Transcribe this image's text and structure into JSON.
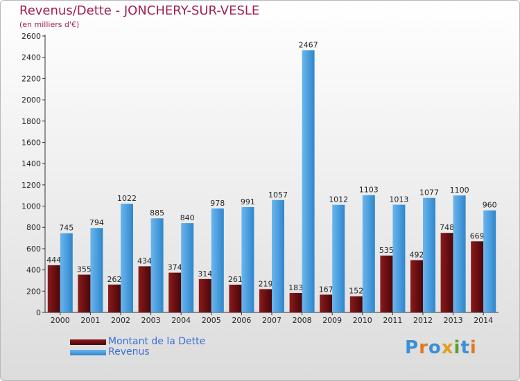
{
  "title": "Revenus/Dette - JONCHERY-SUR-VESLE",
  "subtitle": "(en milliers d'€)",
  "logo": {
    "text": "Proxiti"
  },
  "colors": {
    "dette": "#6b0e10",
    "revenus": "#3d9ae0",
    "title": "#a01e50",
    "legend_text": "#3b6fd6"
  },
  "chart_data": {
    "type": "bar",
    "title": "Revenus/Dette - JONCHERY-SUR-VESLE",
    "subtitle": "(en milliers d'€)",
    "categories": [
      "2000",
      "2001",
      "2002",
      "2003",
      "2004",
      "2005",
      "2006",
      "2007",
      "2008",
      "2009",
      "2010",
      "2011",
      "2012",
      "2013",
      "2014"
    ],
    "series": [
      {
        "name": "Montant de la Dette",
        "values": [
          444,
          355,
          262,
          434,
          374,
          314,
          261,
          219,
          183,
          167,
          152,
          535,
          492,
          748,
          669
        ]
      },
      {
        "name": "Revenus",
        "values": [
          745,
          794,
          1022,
          885,
          840,
          978,
          991,
          1057,
          2467,
          1012,
          1103,
          1013,
          1077,
          1100,
          960
        ]
      }
    ],
    "y_ticks": [
      "0",
      "200",
      "400",
      "600",
      "800",
      "1000",
      "1200",
      "1400",
      "1600",
      "1800",
      "2000",
      "2200",
      "2400",
      "2600"
    ],
    "ylim": [
      0,
      2600
    ],
    "grid": false,
    "legend_position": "bottom-left"
  }
}
